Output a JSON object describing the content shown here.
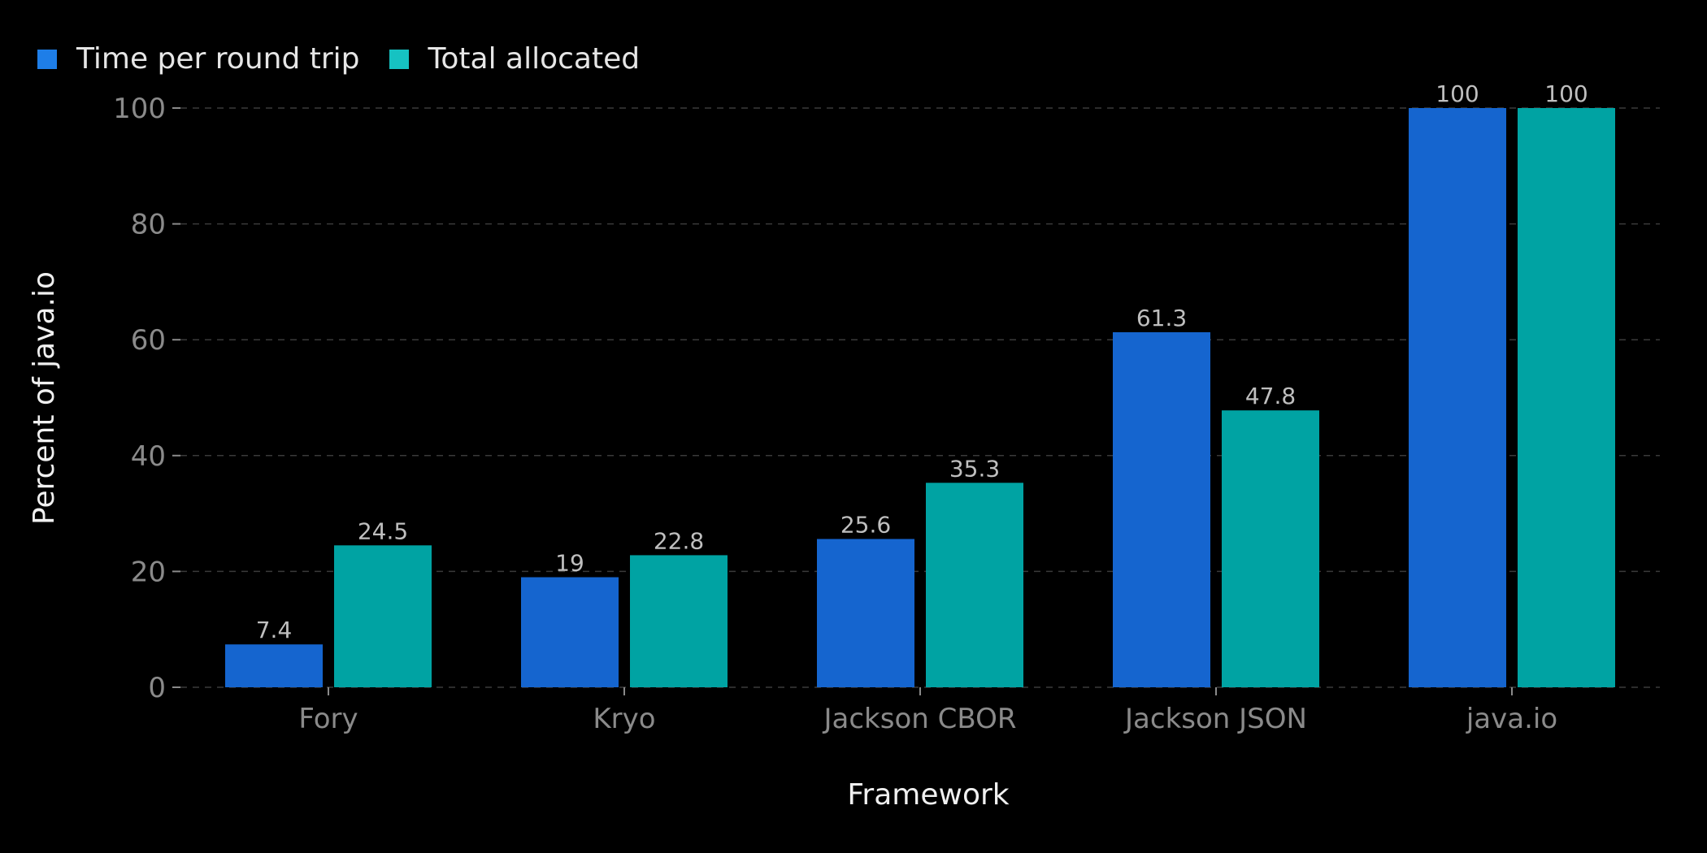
{
  "chart_data": {
    "type": "bar",
    "title": "",
    "xlabel": "Framework",
    "ylabel": "Percent of java.io",
    "categories": [
      "Fory",
      "Kryo",
      "Jackson CBOR",
      "Jackson JSON",
      "java.io"
    ],
    "series": [
      {
        "name": "Time per round trip",
        "values": [
          7.4,
          19,
          25.6,
          61.3,
          100
        ],
        "labels": [
          "7.4",
          "19",
          "25.6",
          "61.3",
          "100"
        ],
        "color": "#1565cf"
      },
      {
        "name": "Total allocated",
        "values": [
          24.5,
          22.8,
          35.3,
          47.8,
          100
        ],
        "labels": [
          "24.5",
          "22.8",
          "35.3",
          "47.8",
          "100"
        ],
        "color": "#00a3a3"
      }
    ],
    "legend_swatch_colors": [
      "#1e7ee8",
      "#16c2c2"
    ],
    "ylim": [
      0,
      100
    ],
    "yticks": [
      0,
      20,
      40,
      60,
      80,
      100
    ],
    "grid": true,
    "grid_style": "dashed",
    "legend_position": "top-left"
  }
}
